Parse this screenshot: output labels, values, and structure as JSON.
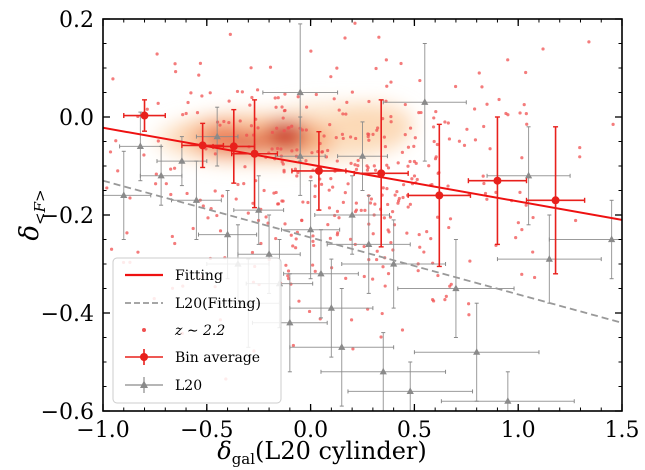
{
  "chart_data": {
    "type": "scatter",
    "xlabel": {
      "main": "δ",
      "sub": "gal",
      "rest": "(L20 cylinder)"
    },
    "ylabel": {
      "main": "δ",
      "sub": "<F>"
    },
    "xlim": [
      -1.0,
      1.5
    ],
    "ylim": [
      -0.6,
      0.2
    ],
    "x_ticks": [
      "−1.0",
      "−0.5",
      "0.0",
      "0.5",
      "1.0",
      "1.5"
    ],
    "y_ticks": [
      "−0.6",
      "−0.4",
      "−0.2",
      "0.0",
      "0.2"
    ],
    "legend": {
      "placement": "lower-left",
      "entries": [
        {
          "key": "fitting",
          "label": "Fitting"
        },
        {
          "key": "l20_fitting",
          "label": "L20(Fitting)"
        },
        {
          "key": "scatter",
          "label": "z ∼ 2.2"
        },
        {
          "key": "bin_average",
          "label": "Bin average"
        },
        {
          "key": "l20",
          "label": "L20"
        }
      ]
    },
    "colors": {
      "fitting": "#ee1111",
      "l20_fitting": "#999999",
      "scatter": "#f05050",
      "bin_average": "#e8201c",
      "l20": "#8a8a8a",
      "density_low": "#fde3c8",
      "density_mid": "#f6a26a",
      "density_high": "#c5281c"
    },
    "series": [
      {
        "name": "Fitting",
        "kind": "line",
        "x": [
          -1.0,
          1.5
        ],
        "y": [
          -0.022,
          -0.21
        ]
      },
      {
        "name": "L20(Fitting)",
        "kind": "dashed-line",
        "x": [
          -1.0,
          1.5
        ],
        "y": [
          -0.13,
          -0.42
        ]
      },
      {
        "name": "Bin average",
        "kind": "errorbar",
        "points": [
          {
            "x": -0.8,
            "y": 0.003,
            "xerr": 0.1,
            "yerr": 0.032
          },
          {
            "x": -0.52,
            "y": -0.058,
            "xerr": 0.1,
            "yerr": 0.045
          },
          {
            "x": -0.37,
            "y": -0.06,
            "xerr": 0.1,
            "yerr": 0.075
          },
          {
            "x": -0.27,
            "y": -0.075,
            "xerr": 0.11,
            "yerr": 0.11
          },
          {
            "x": 0.04,
            "y": -0.11,
            "xerr": 0.13,
            "yerr": 0.08
          },
          {
            "x": 0.34,
            "y": -0.115,
            "xerr": 0.13,
            "yerr": 0.15
          },
          {
            "x": 0.62,
            "y": -0.16,
            "xerr": 0.15,
            "yerr": 0.145
          },
          {
            "x": 0.9,
            "y": -0.13,
            "xerr": 0.14,
            "yerr": 0.13
          },
          {
            "x": 1.18,
            "y": -0.17,
            "xerr": 0.14,
            "yerr": 0.15
          }
        ]
      },
      {
        "name": "L20",
        "kind": "errorbar",
        "points": [
          {
            "x": -0.9,
            "y": -0.16,
            "xerr": 0.13,
            "yerr": 0.09
          },
          {
            "x": -0.82,
            "y": -0.06,
            "xerr": 0.1,
            "yerr": 0.07
          },
          {
            "x": -0.72,
            "y": -0.12,
            "xerr": 0.1,
            "yerr": 0.06
          },
          {
            "x": -0.62,
            "y": -0.09,
            "xerr": 0.12,
            "yerr": 0.05
          },
          {
            "x": -0.55,
            "y": -0.17,
            "xerr": 0.12,
            "yerr": 0.08
          },
          {
            "x": -0.45,
            "y": -0.04,
            "xerr": 0.1,
            "yerr": 0.06
          },
          {
            "x": -0.4,
            "y": -0.24,
            "xerr": 0.14,
            "yerr": 0.09
          },
          {
            "x": -0.35,
            "y": -0.3,
            "xerr": 0.15,
            "yerr": 0.08
          },
          {
            "x": -0.3,
            "y": -0.38,
            "xerr": 0.15,
            "yerr": 0.09
          },
          {
            "x": -0.25,
            "y": -0.19,
            "xerr": 0.12,
            "yerr": 0.07
          },
          {
            "x": -0.2,
            "y": -0.28,
            "xerr": 0.15,
            "yerr": 0.08
          },
          {
            "x": -0.15,
            "y": -0.34,
            "xerr": 0.16,
            "yerr": 0.09
          },
          {
            "x": -0.1,
            "y": -0.42,
            "xerr": 0.18,
            "yerr": 0.1
          },
          {
            "x": -0.05,
            "y": -0.08,
            "xerr": 0.12,
            "yerr": 0.08
          },
          {
            "x": 0.0,
            "y": -0.23,
            "xerr": 0.14,
            "yerr": 0.1
          },
          {
            "x": 0.05,
            "y": -0.32,
            "xerr": 0.18,
            "yerr": 0.09
          },
          {
            "x": 0.1,
            "y": -0.39,
            "xerr": 0.2,
            "yerr": 0.1
          },
          {
            "x": 0.15,
            "y": -0.47,
            "xerr": 0.25,
            "yerr": 0.12
          },
          {
            "x": 0.2,
            "y": -0.2,
            "xerr": 0.18,
            "yerr": 0.08
          },
          {
            "x": 0.28,
            "y": -0.26,
            "xerr": 0.2,
            "yerr": 0.1
          },
          {
            "x": 0.35,
            "y": -0.52,
            "xerr": 0.3,
            "yerr": 0.08
          },
          {
            "x": 0.4,
            "y": -0.3,
            "xerr": 0.25,
            "yerr": 0.09
          },
          {
            "x": 0.48,
            "y": -0.56,
            "xerr": 0.3,
            "yerr": 0.06
          },
          {
            "x": 0.55,
            "y": 0.03,
            "xerr": 0.2,
            "yerr": 0.12
          },
          {
            "x": 0.7,
            "y": -0.35,
            "xerr": 0.28,
            "yerr": 0.1
          },
          {
            "x": 0.8,
            "y": -0.48,
            "xerr": 0.3,
            "yerr": 0.1
          },
          {
            "x": 0.95,
            "y": -0.58,
            "xerr": 0.32,
            "yerr": 0.06
          },
          {
            "x": 1.05,
            "y": -0.12,
            "xerr": 0.2,
            "yerr": 0.1
          },
          {
            "x": 1.15,
            "y": -0.29,
            "xerr": 0.25,
            "yerr": 0.09
          },
          {
            "x": 1.45,
            "y": -0.25,
            "xerr": 0.3,
            "yerr": 0.08
          },
          {
            "x": -0.05,
            "y": 0.05,
            "xerr": 0.18,
            "yerr": 0.14
          },
          {
            "x": 0.25,
            "y": -0.08,
            "xerr": 0.12,
            "yerr": 0.07
          }
        ]
      },
      {
        "name": "z ∼ 2.2",
        "kind": "scatter-cloud",
        "count": 420,
        "center": [
          0.1,
          -0.12
        ],
        "spread": [
          0.5,
          0.14
        ]
      }
    ]
  }
}
